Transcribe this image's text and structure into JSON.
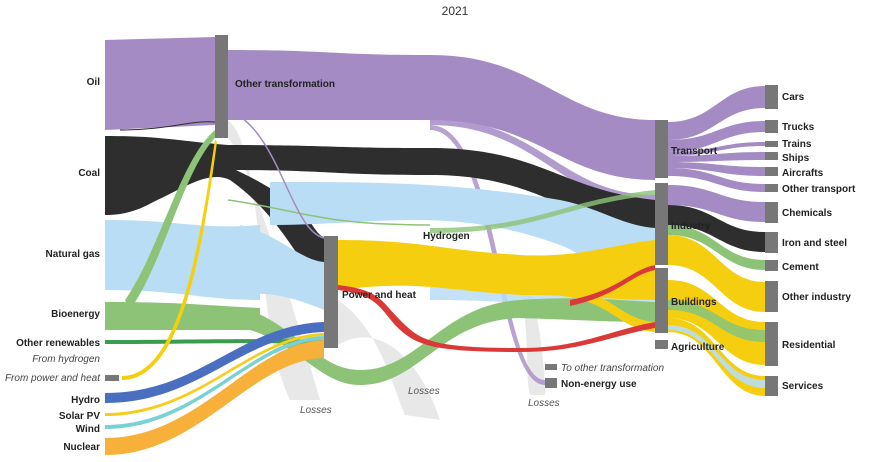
{
  "title": "2021",
  "colors": {
    "oil": "#a58bc4",
    "coal": "#2e2e2e",
    "natural_gas": "#b9ddf4",
    "bioenergy": "#8cc377",
    "other_renewables": "#3a9c4f",
    "hydrogen": "#cfcfcf",
    "power_heat": "#d93a37",
    "hydro": "#4a6fc1",
    "solar": "#f6cd1a",
    "wind": "#78d1d2",
    "nuclear": "#f7b03a",
    "electricity": "#f5cf0f",
    "losses": "#e4e4e4",
    "node": "#777777"
  },
  "sources": [
    {
      "label": "Oil",
      "italic": false
    },
    {
      "label": "Coal",
      "italic": false
    },
    {
      "label": "Natural gas",
      "italic": false
    },
    {
      "label": "Bioenergy",
      "italic": false
    },
    {
      "label": "Other renewables",
      "italic": false
    },
    {
      "label": "From hydrogen",
      "italic": true
    },
    {
      "label": "From power and heat",
      "italic": true
    },
    {
      "label": "Hydro",
      "italic": false
    },
    {
      "label": "Solar PV",
      "italic": false
    },
    {
      "label": "Wind",
      "italic": false
    },
    {
      "label": "Nuclear",
      "italic": false
    }
  ],
  "conversion": {
    "other_transformation": "Other transformation",
    "power_and_heat": "Power and heat",
    "hydrogen": "Hydrogen",
    "losses_1": "Losses",
    "losses_2": "Losses",
    "losses_3": "Losses"
  },
  "sectors": {
    "transport": "Transport",
    "industry": "Industry",
    "buildings": "Buildings",
    "agriculture": "Agriculture",
    "to_other_transformation": "To other transformation",
    "non_energy_use": "Non-energy use"
  },
  "end_uses": [
    "Cars",
    "Trucks",
    "Trains",
    "Ships",
    "Aircrafts",
    "Other transport",
    "Chemicals",
    "Iron and steel",
    "Cement",
    "Other industry",
    "Residential",
    "Services"
  ]
}
